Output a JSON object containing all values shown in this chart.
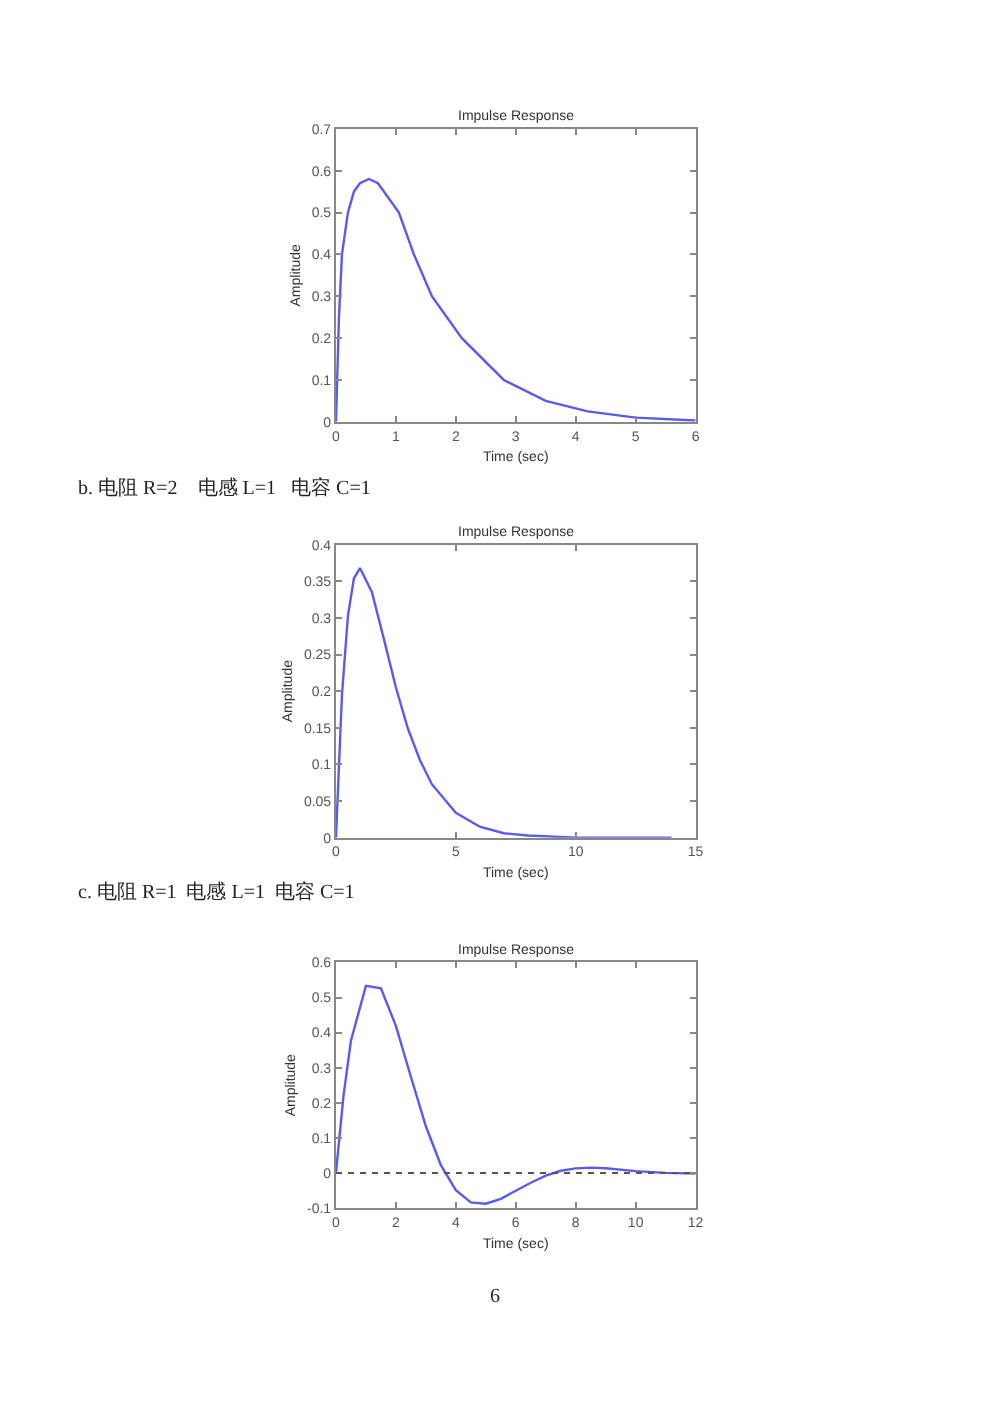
{
  "chart_data": [
    {
      "type": "line",
      "title": "Impulse Response",
      "xlabel": "Time (sec)",
      "ylabel": "Amplitude",
      "x": [
        0,
        0.05,
        0.1,
        0.2,
        0.3,
        0.4,
        0.55,
        0.7,
        0.85,
        1.05,
        1.3,
        1.6,
        2.1,
        2.8,
        3.5,
        4.2,
        5,
        6
      ],
      "series": [
        {
          "color": "#5a5af0",
          "values": [
            0,
            0.25,
            0.4,
            0.5,
            0.55,
            0.57,
            0.58,
            0.57,
            0.54,
            0.5,
            0.4,
            0.3,
            0.2,
            0.1,
            0.05,
            0.025,
            0.01,
            0.003
          ]
        }
      ],
      "xlim": [
        0,
        6
      ],
      "ylim": [
        0,
        0.7
      ],
      "xticks": [
        0,
        1,
        2,
        3,
        4,
        5,
        6
      ],
      "yticks": [
        0,
        0.1,
        0.2,
        0.3,
        0.4,
        0.5,
        0.6,
        0.7
      ],
      "line_style": "solid",
      "marker": "none"
    },
    {
      "type": "line",
      "title": "Impulse Response",
      "subtitle": "b. 电阻 R=2    电感 L=1   电容 C=1",
      "xlabel": "Time (sec)",
      "ylabel": "Amplitude",
      "x": [
        0,
        0.25,
        0.5,
        0.75,
        1,
        1.5,
        2,
        2.5,
        3,
        3.5,
        4,
        5,
        6,
        7,
        8,
        10,
        12,
        14
      ],
      "series": [
        {
          "color": "#5a5af0",
          "values": [
            0,
            0.195,
            0.303,
            0.354,
            0.368,
            0.335,
            0.271,
            0.205,
            0.149,
            0.106,
            0.073,
            0.034,
            0.015,
            0.006,
            0.003,
            0,
            0,
            0
          ]
        }
      ],
      "xlim": [
        0,
        15
      ],
      "ylim": [
        0,
        0.4
      ],
      "xticks": [
        0,
        5,
        10,
        15
      ],
      "yticks": [
        0,
        0.05,
        0.1,
        0.15,
        0.2,
        0.25,
        0.3,
        0.35,
        0.4
      ],
      "line_style": "solid",
      "marker": "none"
    },
    {
      "type": "line",
      "title": "Impulse Response",
      "subtitle": "c. 电阻 R=1  电感 L=1  电容 C=1",
      "xlabel": "Time (sec)",
      "ylabel": "Amplitude",
      "annotations": [
        "6"
      ],
      "x": [
        0,
        0.25,
        0.5,
        1,
        1.5,
        2,
        2.5,
        3,
        3.5,
        4,
        4.5,
        5,
        5.5,
        6,
        6.5,
        7,
        7.5,
        8,
        8.5,
        9,
        10,
        11,
        12
      ],
      "series": [
        {
          "color": "#5a5af0",
          "values": [
            0,
            0.219,
            0.377,
            0.533,
            0.526,
            0.419,
            0.274,
            0.133,
            0.022,
            -0.049,
            -0.084,
            -0.088,
            -0.074,
            -0.051,
            -0.028,
            -0.008,
            0.006,
            0.013,
            0.015,
            0.013,
            0.005,
            0,
            -0.002
          ]
        }
      ],
      "ref_lines": [
        {
          "axis": "y",
          "value": 0,
          "color": "#555555",
          "line_style": "dotted"
        }
      ],
      "xlim": [
        0,
        12
      ],
      "ylim": [
        -0.1,
        0.6
      ],
      "xticks": [
        0,
        2,
        4,
        6,
        8,
        10,
        12
      ],
      "yticks": [
        -0.1,
        0,
        0.1,
        0.2,
        0.3,
        0.4,
        0.5,
        0.6
      ],
      "line_style": "solid",
      "marker": "none"
    }
  ]
}
